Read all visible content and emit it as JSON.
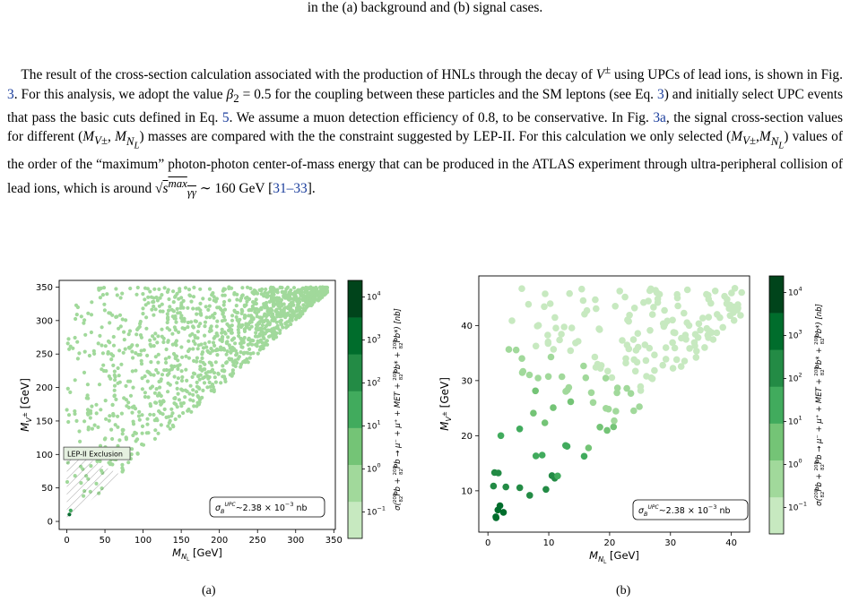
{
  "caption_tail": "in the (a) background and (b) signal cases.",
  "paragraph": {
    "s1a": "The result of the cross-section calculation associated with the production of HNLs through the decay of ",
    "s1b": " using UPCs of lead ions, is shown in Fig. ",
    "fig_ref": "3",
    "s1c": ". For this analysis, we adopt the value ",
    "s1d": " for the coupling between these particles and the SM leptons (see Eq. ",
    "eq_ref1": "3",
    "s1e": ") and initially select UPC events that pass the basic cuts defined in Eq. ",
    "eq_ref2": "5",
    "s1f": ". We assume a muon detection efficiency of 0.8, to be conservative. In Fig. ",
    "fig_ref2": "3a",
    "s1g": ", the signal cross-section values for different ",
    "s1h": " masses are compared with the the constraint suggested by LEP-II. For this calculation we only selected ",
    "s1i": " values of the order of the “maximum” photon-photon center-of-mass energy that can be produced in the ATLAS experiment through ultra-peripheral collision of lead ions, which is around ",
    "s1j": " 160 GeV [",
    "cite": "31–33",
    "s1k": "]."
  },
  "figure_a_label": "(a)",
  "figure_b_label": "(b)",
  "chart_data": [
    {
      "type": "scatter",
      "panel": "a",
      "xlabel": "M_{N_L} [GeV]",
      "ylabel": "M_{V^±} [GeV]",
      "xlim": [
        -10,
        352
      ],
      "ylim": [
        -12,
        360
      ],
      "xticks": [
        0,
        50,
        100,
        150,
        200,
        250,
        300,
        350
      ],
      "yticks": [
        0,
        50,
        100,
        150,
        200,
        250,
        300,
        350
      ],
      "region": "M_V > M_N (triangle above diagonal)",
      "color_note": "points light green except dark near origin",
      "annotation": "LEP-II Exclusion",
      "legend": "σ_B^UPC~2.38 × 10^-3 nb",
      "colorbar_label": "σ(208 82Pb + 208 82Pb → μ⁻ + μ⁺ + MET + 208 82Pb* + 208 82Pb*) [nb]",
      "colorbar_ticks": [
        "10^-1",
        "10^0",
        "10^1",
        "10^2",
        "10^3",
        "10^4"
      ],
      "colorbar_colors": [
        "#c7e9c0",
        "#a1d99b",
        "#74c476",
        "#41ab5d",
        "#238b45",
        "#006d2c",
        "#00441b"
      ]
    },
    {
      "type": "scatter",
      "panel": "b",
      "xlabel": "M_{N_L} [GeV]",
      "ylabel": "M_{V^±} [GeV]",
      "xlim": [
        -1.5,
        43
      ],
      "ylim": [
        2.5,
        49
      ],
      "xticks": [
        0,
        10,
        20,
        30,
        40
      ],
      "yticks": [
        10,
        20,
        30,
        40
      ],
      "region": "M_V > M_N",
      "legend": "σ_B^UPC~2.38 × 10^-3 nb",
      "colorbar_label": "σ(208 82Pb + 208 82Pb → μ⁻ + μ⁺ + MET + 208 82Pb* + 208 82Pb*) [nb]",
      "colorbar_ticks": [
        "10^-1",
        "10^0",
        "10^1",
        "10^2",
        "10^3",
        "10^4"
      ],
      "colorbar_colors": [
        "#c7e9c0",
        "#a1d99b",
        "#74c476",
        "#41ab5d",
        "#238b45",
        "#006d2c",
        "#00441b"
      ]
    }
  ]
}
